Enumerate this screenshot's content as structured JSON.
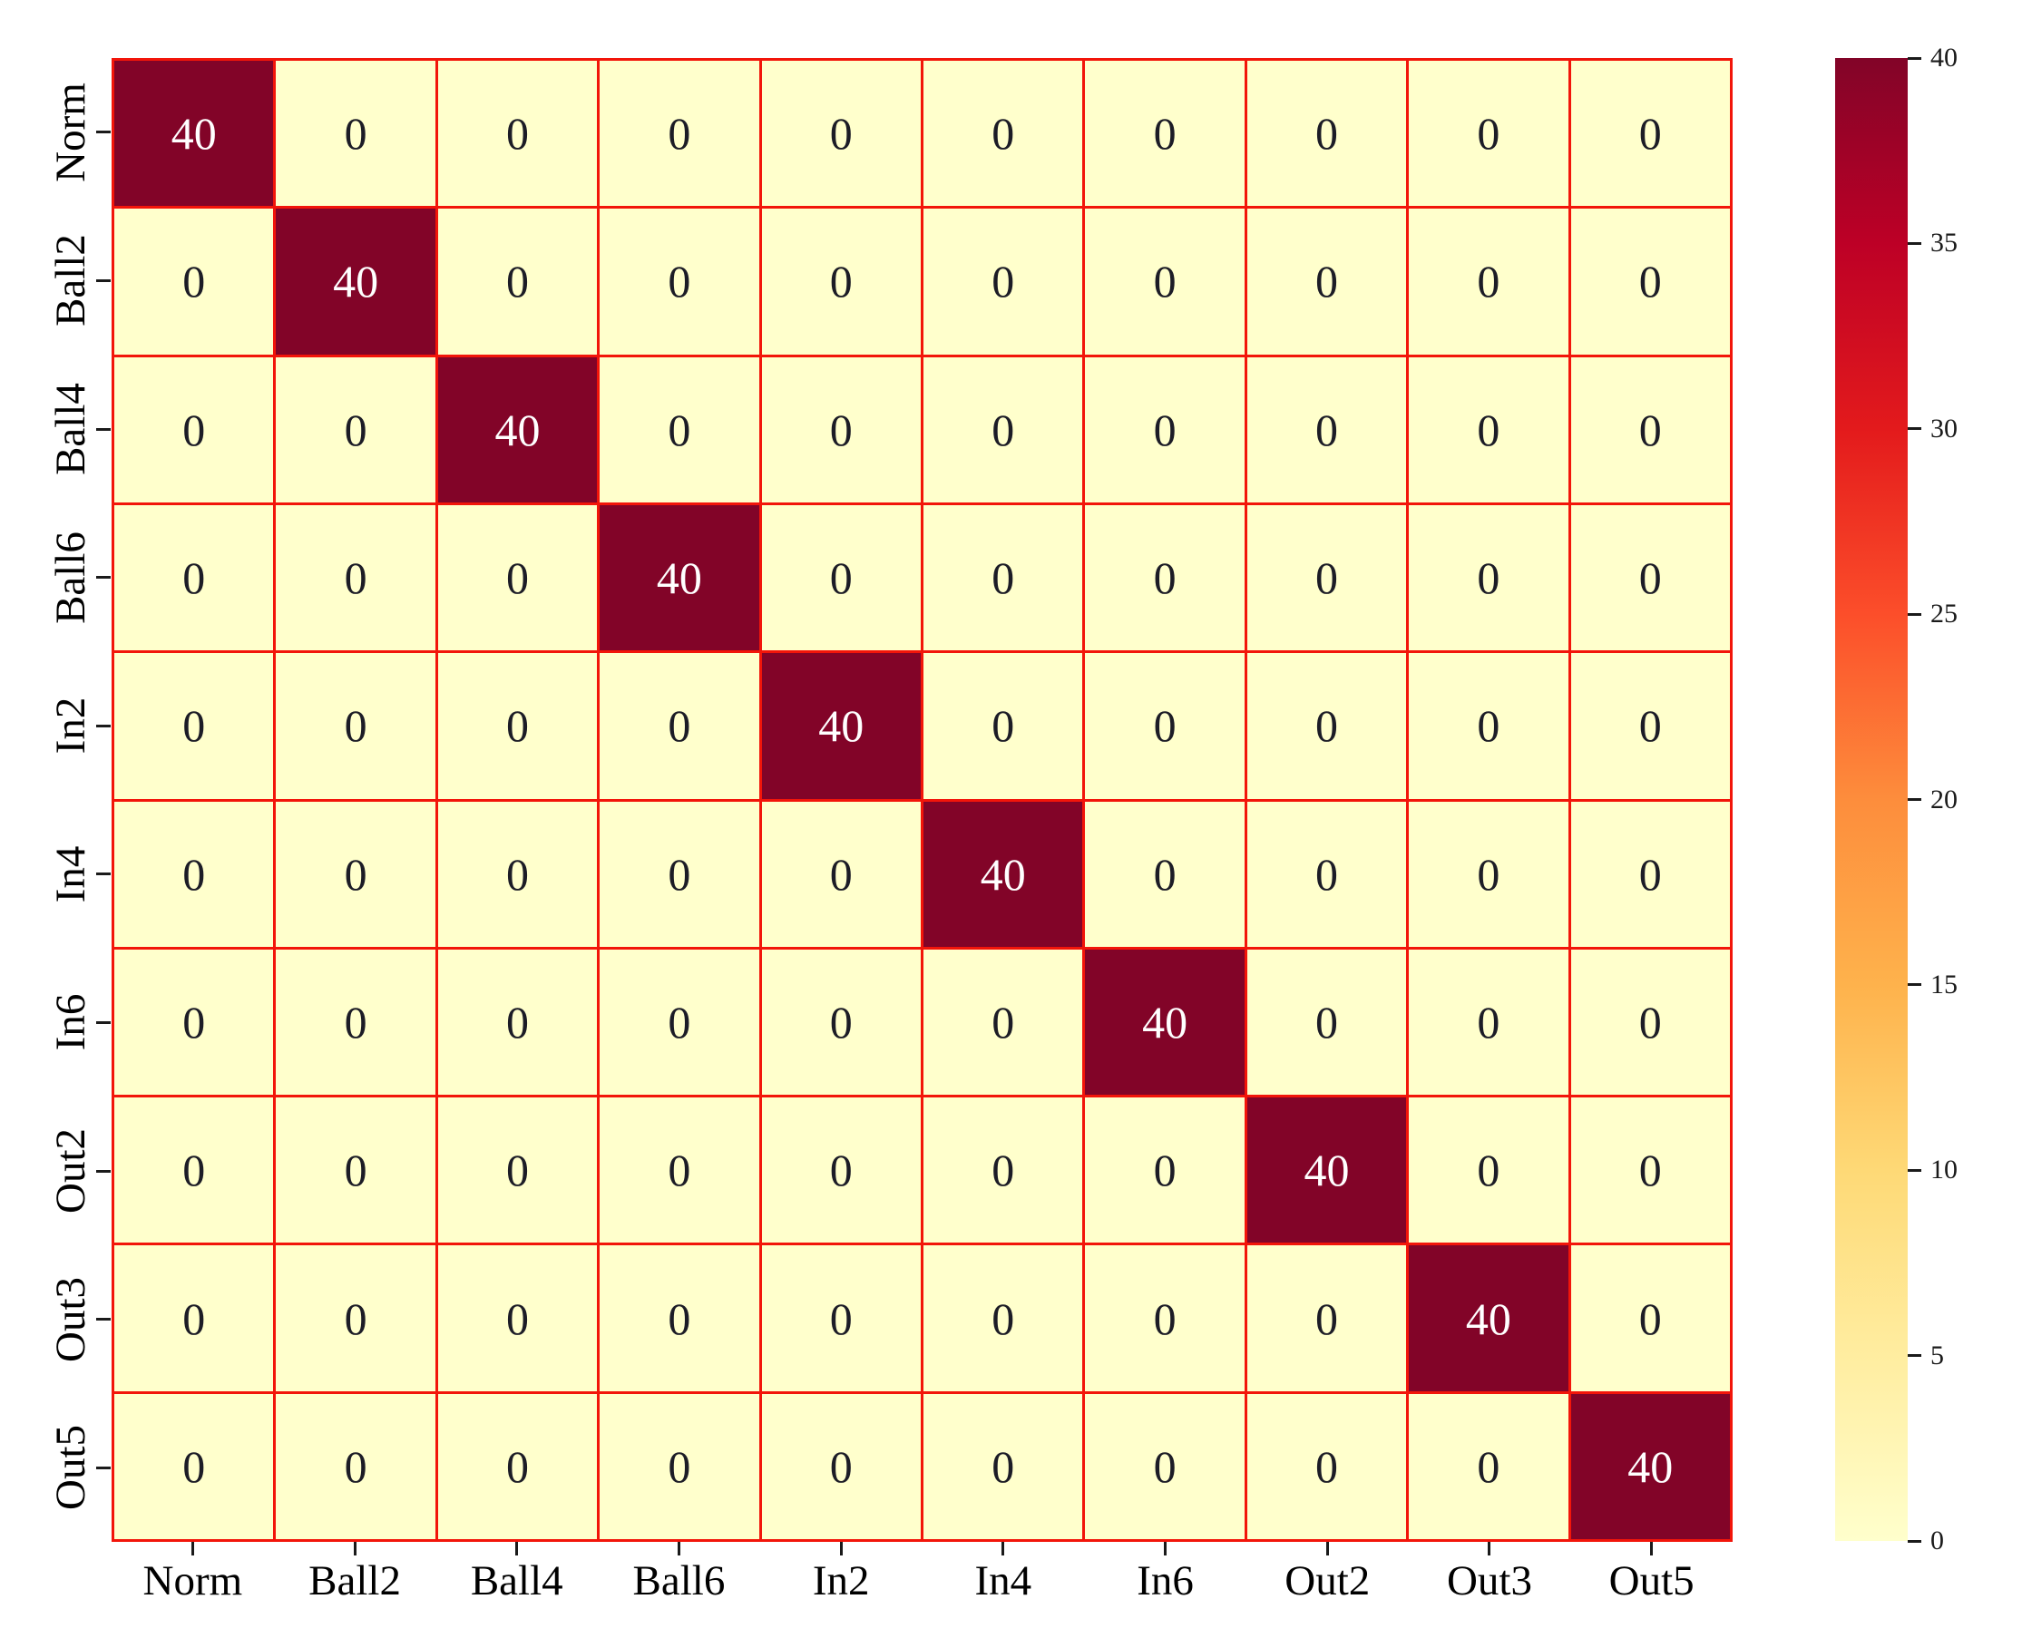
{
  "chart_data": {
    "type": "heatmap",
    "title": "",
    "xlabel": "",
    "ylabel": "",
    "x_categories": [
      "Norm",
      "Ball2",
      "Ball4",
      "Ball6",
      "In2",
      "In4",
      "In6",
      "Out2",
      "Out3",
      "Out5"
    ],
    "y_categories": [
      "Norm",
      "Ball2",
      "Ball4",
      "Ball6",
      "In2",
      "In4",
      "In6",
      "Out2",
      "Out3",
      "Out5"
    ],
    "matrix": [
      [
        40,
        0,
        0,
        0,
        0,
        0,
        0,
        0,
        0,
        0
      ],
      [
        0,
        40,
        0,
        0,
        0,
        0,
        0,
        0,
        0,
        0
      ],
      [
        0,
        0,
        40,
        0,
        0,
        0,
        0,
        0,
        0,
        0
      ],
      [
        0,
        0,
        0,
        40,
        0,
        0,
        0,
        0,
        0,
        0
      ],
      [
        0,
        0,
        0,
        0,
        40,
        0,
        0,
        0,
        0,
        0
      ],
      [
        0,
        0,
        0,
        0,
        0,
        40,
        0,
        0,
        0,
        0
      ],
      [
        0,
        0,
        0,
        0,
        0,
        0,
        40,
        0,
        0,
        0
      ],
      [
        0,
        0,
        0,
        0,
        0,
        0,
        0,
        40,
        0,
        0
      ],
      [
        0,
        0,
        0,
        0,
        0,
        0,
        0,
        0,
        40,
        0
      ],
      [
        0,
        0,
        0,
        0,
        0,
        0,
        0,
        0,
        0,
        40
      ]
    ],
    "vmin": 0,
    "vmax": 40,
    "annotations": true,
    "grid_on": true,
    "grid_color": "#f2150a",
    "colormap_name": "YlOrRd",
    "colormap_stops": [
      "#ffffcc",
      "#ffeda0",
      "#fed976",
      "#feb24c",
      "#fd8d3c",
      "#fc4e2a",
      "#e31a1c",
      "#bd0026",
      "#820428"
    ],
    "cell_text_color_low": "#1c1c26",
    "cell_text_color_high": "#ffffff",
    "colorbar": {
      "position": "right",
      "ticks": [
        "0",
        "5",
        "10",
        "15",
        "20",
        "25",
        "30",
        "35",
        "40"
      ],
      "min": 0,
      "max": 40
    }
  }
}
